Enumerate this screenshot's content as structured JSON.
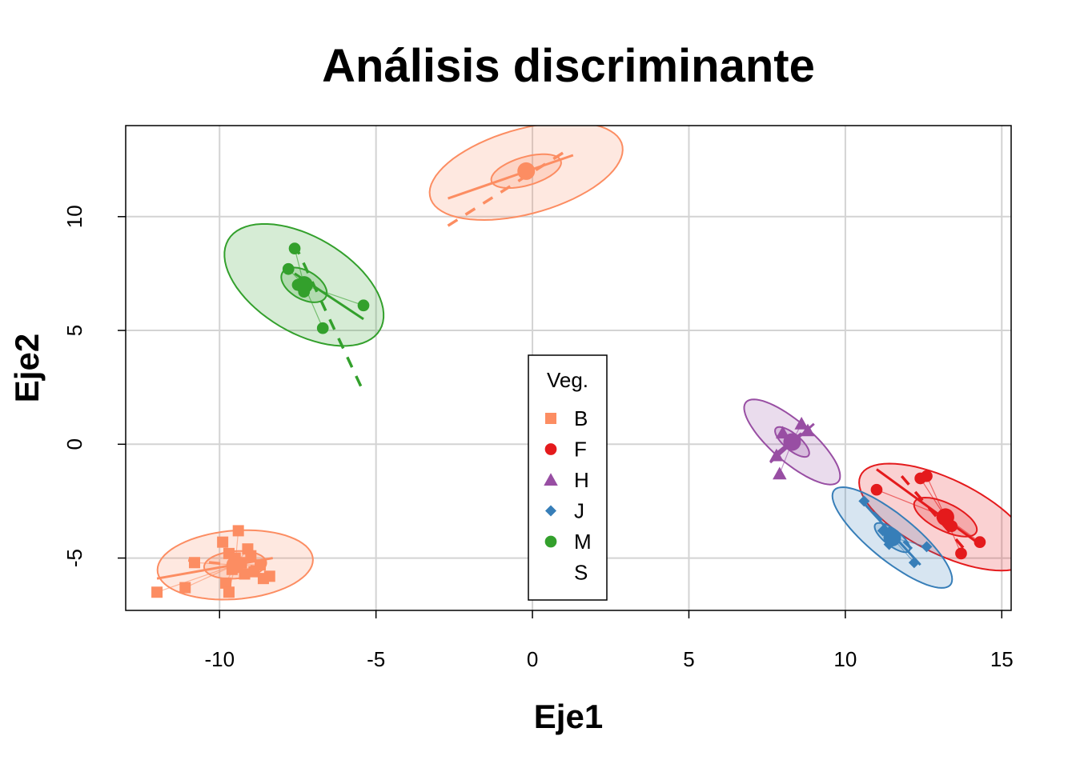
{
  "chart_data": {
    "type": "scatter",
    "title": "Análisis discriminante",
    "xlabel": "Eje1",
    "ylabel": "Eje2",
    "xlim": [
      -13.0,
      15.3
    ],
    "ylim": [
      -7.3,
      14.0
    ],
    "xticks": [
      -10,
      -5,
      0,
      5,
      10,
      15
    ],
    "yticks": [
      -5,
      0,
      5,
      10
    ],
    "grid": true,
    "legend": {
      "title": "Veg.",
      "placement": "center-bottom",
      "entries": [
        {
          "label": "B",
          "color": "#FC8D62",
          "marker": "square"
        },
        {
          "label": "F",
          "color": "#E41A1C",
          "marker": "circle"
        },
        {
          "label": "H",
          "color": "#984EA3",
          "marker": "triangle"
        },
        {
          "label": "J",
          "color": "#377EB8",
          "marker": "diamond"
        },
        {
          "label": "M",
          "color": "#33A02C",
          "marker": "circle"
        },
        {
          "label": "S",
          "color": "",
          "marker": "none"
        }
      ]
    },
    "series": [
      {
        "name": "B",
        "color": "#FC8D62",
        "marker": "square",
        "centroid": [
          -9.5,
          -5.3
        ],
        "ellipse": {
          "rx": 2.5,
          "ry": 1.5,
          "angle": 8
        },
        "inner_ellipse": {
          "rx": 1.0,
          "ry": 0.6,
          "angle": 8
        },
        "regression_line": [
          [
            -12.0,
            -5.9
          ],
          [
            -8.3,
            -5.0
          ]
        ],
        "dashed_line": [
          [
            -11.0,
            -5.1
          ],
          [
            -8.8,
            -5.4
          ]
        ],
        "points": [
          [
            -12.0,
            -6.5
          ],
          [
            -11.1,
            -6.3
          ],
          [
            -10.8,
            -5.2
          ],
          [
            -9.9,
            -4.3
          ],
          [
            -9.7,
            -4.8
          ],
          [
            -9.4,
            -3.8
          ],
          [
            -9.6,
            -5.5
          ],
          [
            -9.3,
            -5.2
          ],
          [
            -9.2,
            -5.7
          ],
          [
            -9.0,
            -4.9
          ],
          [
            -8.9,
            -5.6
          ],
          [
            -8.7,
            -5.3
          ],
          [
            -8.4,
            -5.8
          ],
          [
            -9.8,
            -6.1
          ],
          [
            -9.7,
            -6.5
          ],
          [
            -9.1,
            -4.6
          ],
          [
            -8.6,
            -5.9
          ],
          [
            -9.5,
            -5.0
          ]
        ]
      },
      {
        "name": "F",
        "color": "#E41A1C",
        "marker": "circle",
        "centroid": [
          13.2,
          -3.2
        ],
        "ellipse": {
          "rx": 3.3,
          "ry": 1.5,
          "angle": -38
        },
        "inner_ellipse": {
          "rx": 1.2,
          "ry": 0.55,
          "angle": -38
        },
        "regression_line": [
          [
            11.0,
            -1.1
          ],
          [
            14.2,
            -4.3
          ]
        ],
        "dashed_line": [
          [
            11.8,
            -1.4
          ],
          [
            13.8,
            -4.6
          ]
        ],
        "points": [
          [
            11.0,
            -2.0
          ],
          [
            12.4,
            -1.5
          ],
          [
            12.6,
            -1.4
          ],
          [
            13.1,
            -3.2
          ],
          [
            13.4,
            -3.6
          ],
          [
            13.7,
            -4.8
          ],
          [
            14.3,
            -4.3
          ]
        ]
      },
      {
        "name": "H",
        "color": "#984EA3",
        "marker": "triangle",
        "centroid": [
          8.3,
          0.1
        ],
        "ellipse": {
          "rx": 2.3,
          "ry": 0.75,
          "angle": -52
        },
        "inner_ellipse": {
          "rx": 0.8,
          "ry": 0.3,
          "angle": -52
        },
        "regression_line": [
          [
            7.6,
            -0.8
          ],
          [
            9.0,
            0.9
          ]
        ],
        "dashed_line": [
          [
            7.8,
            -0.4
          ],
          [
            8.8,
            0.7
          ]
        ],
        "points": [
          [
            7.9,
            -1.3
          ],
          [
            7.8,
            -0.5
          ],
          [
            8.0,
            0.5
          ],
          [
            8.3,
            0.1
          ],
          [
            8.6,
            0.9
          ],
          [
            8.8,
            0.6
          ]
        ]
      },
      {
        "name": "J",
        "color": "#377EB8",
        "marker": "diamond",
        "centroid": [
          11.5,
          -4.1
        ],
        "ellipse": {
          "rx": 2.8,
          "ry": 0.85,
          "angle": -50
        },
        "inner_ellipse": {
          "rx": 0.8,
          "ry": 0.3,
          "angle": -50
        },
        "regression_line": [
          [
            10.6,
            -2.6
          ],
          [
            12.4,
            -5.3
          ]
        ],
        "dashed_line": [
          [
            10.9,
            -3.0
          ],
          [
            12.2,
            -4.7
          ]
        ],
        "points": [
          [
            10.6,
            -2.5
          ],
          [
            11.2,
            -3.8
          ],
          [
            11.5,
            -4.1
          ],
          [
            11.4,
            -4.4
          ],
          [
            12.2,
            -5.2
          ],
          [
            12.6,
            -4.5
          ]
        ]
      },
      {
        "name": "M",
        "color": "#33A02C",
        "marker": "circle",
        "centroid": [
          -7.3,
          7.0
        ],
        "ellipse": {
          "rx": 3.2,
          "ry": 1.85,
          "angle": -48
        },
        "inner_ellipse": {
          "rx": 0.9,
          "ry": 0.55,
          "angle": -48
        },
        "regression_line": [
          [
            -7.6,
            7.5
          ],
          [
            -5.4,
            5.5
          ]
        ],
        "dashed_line": [
          [
            -7.6,
            8.8
          ],
          [
            -5.4,
            2.3
          ]
        ],
        "points": [
          [
            -7.6,
            8.6
          ],
          [
            -7.8,
            7.7
          ],
          [
            -7.5,
            7.0
          ],
          [
            -7.3,
            6.7
          ],
          [
            -6.7,
            5.1
          ],
          [
            -5.4,
            6.1
          ]
        ]
      },
      {
        "name": "",
        "color": "#FC8D62",
        "marker": "none",
        "centroid": [
          -0.2,
          12.0
        ],
        "ellipse": {
          "rx": 3.3,
          "ry": 1.8,
          "angle": 25
        },
        "inner_ellipse": {
          "rx": 1.2,
          "ry": 0.6,
          "angle": 25
        },
        "regression_line": [
          [
            -2.7,
            10.8
          ],
          [
            1.3,
            12.7
          ]
        ],
        "dashed_line": [
          [
            -2.7,
            9.6
          ],
          [
            1.2,
            13.0
          ]
        ],
        "points": []
      }
    ]
  }
}
